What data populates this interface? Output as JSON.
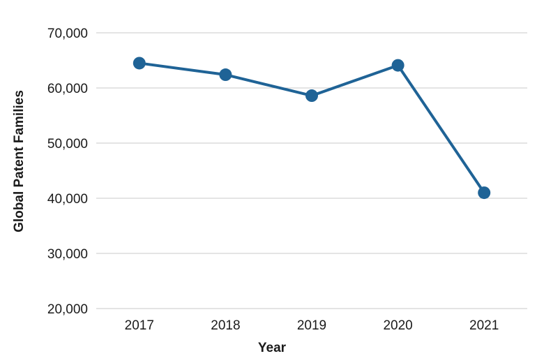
{
  "chart_data": {
    "type": "line",
    "title": "",
    "xlabel": "Year",
    "ylabel": "Global Patent Families",
    "categories": [
      "2017",
      "2018",
      "2019",
      "2020",
      "2021"
    ],
    "series": [
      {
        "values": [
          64500,
          62400,
          58600,
          64100,
          41000
        ]
      }
    ],
    "ylim": [
      20000,
      70000
    ],
    "yticks": [
      20000,
      30000,
      40000,
      50000,
      60000,
      70000
    ],
    "ytick_labels": [
      "20,000",
      "30,000",
      "40,000",
      "50,000",
      "60,000",
      "70,000"
    ],
    "grid": "horizontal",
    "legend": "none",
    "line_color": "#1f6396"
  }
}
